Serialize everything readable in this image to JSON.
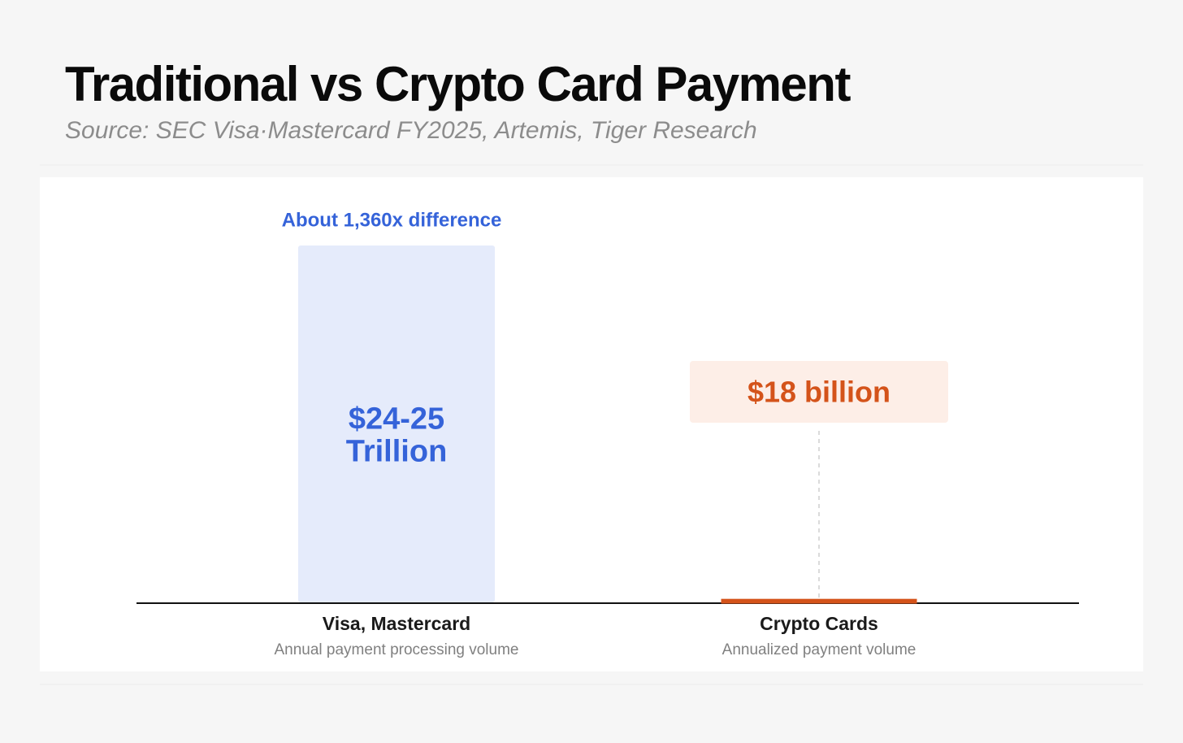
{
  "chart_data": {
    "type": "bar",
    "title": "Traditional vs Crypto Card Payment",
    "subtitle": "Source: SEC Visa·Mastercard FY2025, Artemis, Tiger Research",
    "annotation": "About 1,360x difference",
    "categories": [
      "Visa, Mastercard",
      "Crypto Cards"
    ],
    "descriptions": [
      "Annual payment processing volume",
      "Annualized payment volume"
    ],
    "values": [
      24500000000000,
      18000000000
    ],
    "value_labels": [
      "$24-25 Trillion",
      "$18 billion"
    ],
    "colors": [
      "#e5ebfb",
      "#d4531a"
    ],
    "label_colors": [
      "#3563d9",
      "#d4531a"
    ]
  }
}
